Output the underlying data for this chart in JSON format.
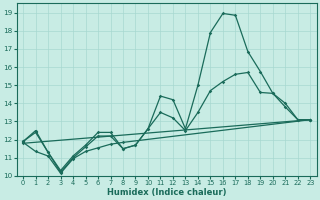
{
  "xlabel": "Humidex (Indice chaleur)",
  "xlim": [
    -0.5,
    23.5
  ],
  "ylim": [
    10,
    19.5
  ],
  "yticks": [
    10,
    11,
    12,
    13,
    14,
    15,
    16,
    17,
    18,
    19
  ],
  "xticks": [
    0,
    1,
    2,
    3,
    4,
    5,
    6,
    7,
    8,
    9,
    10,
    11,
    12,
    13,
    14,
    15,
    16,
    17,
    18,
    19,
    20,
    21,
    22,
    23
  ],
  "bg_color": "#c8ece4",
  "grid_color": "#a8d8d0",
  "line_color": "#1a6b5a",
  "line1_x": [
    0,
    1,
    2,
    3,
    4,
    5,
    6,
    7,
    8,
    9,
    10,
    11,
    12,
    13,
    14,
    15,
    16,
    17,
    18,
    19,
    20,
    21,
    22,
    23
  ],
  "line1_y": [
    11.9,
    12.5,
    11.3,
    10.3,
    11.1,
    11.7,
    12.4,
    12.4,
    11.5,
    11.7,
    12.6,
    14.4,
    14.2,
    12.6,
    15.0,
    17.9,
    18.95,
    18.85,
    16.85,
    15.75,
    14.55,
    13.8,
    13.1,
    13.1
  ],
  "line2_x": [
    0,
    1,
    2,
    3,
    4,
    5,
    6,
    7,
    8,
    9,
    10,
    11,
    12,
    13,
    14,
    15,
    16,
    17,
    18,
    19,
    20,
    21,
    22,
    23
  ],
  "line2_y": [
    11.9,
    12.4,
    11.3,
    10.2,
    11.0,
    11.6,
    12.2,
    12.2,
    11.5,
    11.7,
    12.6,
    13.5,
    13.2,
    12.5,
    13.5,
    14.7,
    15.2,
    15.6,
    15.7,
    14.6,
    14.55,
    14.0,
    13.1,
    13.1
  ],
  "line3_x": [
    0,
    23
  ],
  "line3_y": [
    11.8,
    13.1
  ],
  "line4_x": [
    0,
    1,
    2,
    3,
    4,
    5,
    6,
    7,
    8,
    23
  ],
  "line4_y": [
    11.85,
    11.35,
    11.1,
    10.15,
    10.95,
    11.35,
    11.55,
    11.75,
    11.85,
    13.1
  ]
}
